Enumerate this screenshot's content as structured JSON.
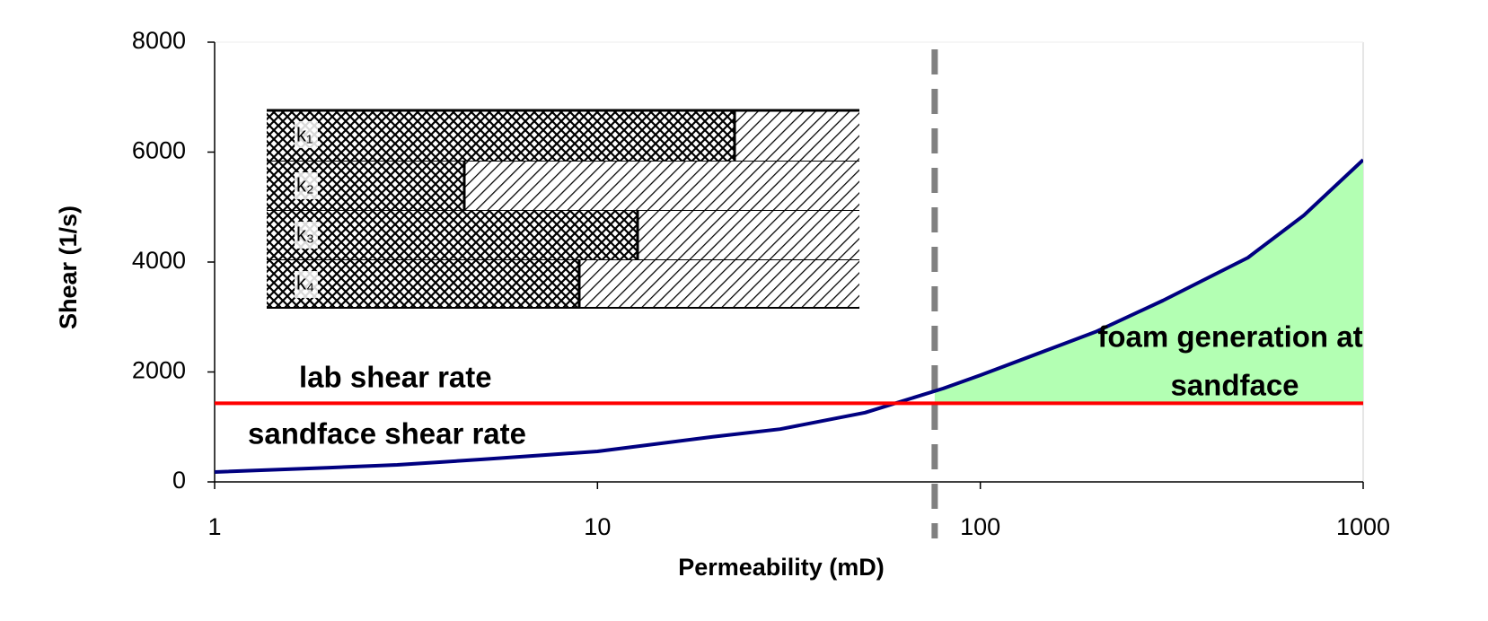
{
  "chart_data": {
    "type": "line",
    "xlabel": "Permeability (mD)",
    "ylabel": "Shear (1/s)",
    "xscale": "log",
    "xlim": [
      1,
      1000
    ],
    "xticks": [
      1,
      10,
      100,
      1000
    ],
    "ylim": [
      0,
      8000
    ],
    "yticks": [
      0,
      2000,
      4000,
      6000,
      8000
    ],
    "x": [
      1,
      2,
      3,
      5,
      10,
      20,
      30,
      50,
      80,
      100,
      200,
      300,
      500,
      700,
      1000
    ],
    "series": [
      {
        "name": "sandface shear rate",
        "color": "#000080",
        "values": [
          180,
          260,
          310,
          410,
          555,
          820,
          960,
          1260,
          1700,
          1940,
          2730,
          3300,
          4080,
          4850,
          5860
        ]
      },
      {
        "name": "lab shear rate",
        "color": "#ff0000",
        "values": [
          1430,
          1430,
          1430,
          1430,
          1430,
          1430,
          1430,
          1430,
          1430,
          1430,
          1430,
          1430,
          1430,
          1430,
          1430
        ]
      }
    ],
    "vline": {
      "value": 76,
      "color": "#808080"
    },
    "shade_color": "#b3ffb3",
    "annotations": [
      "foam generation at",
      "sandface"
    ],
    "inset": {
      "labels": [
        "k₁",
        "k₂",
        "k₃",
        "k₄"
      ]
    }
  }
}
